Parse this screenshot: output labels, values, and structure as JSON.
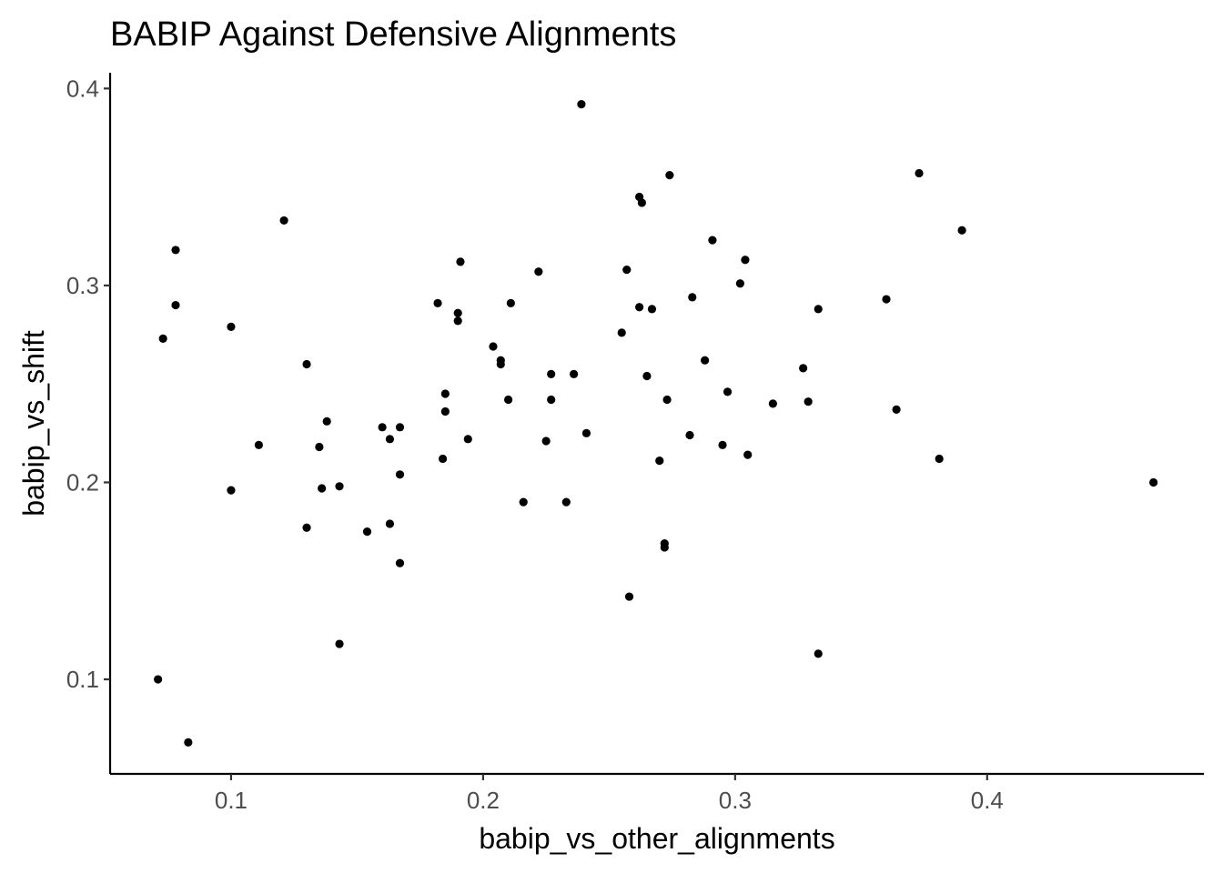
{
  "chart_data": {
    "type": "scatter",
    "title": "BABIP Against Defensive Alignments",
    "xlabel": "babip_vs_other_alignments",
    "ylabel": "babip_vs_shift",
    "xlim": [
      0.052,
      0.486
    ],
    "ylim": [
      0.052,
      0.408
    ],
    "x_ticks": [
      0.1,
      0.2,
      0.3,
      0.4
    ],
    "x_tick_labels": [
      "0.1",
      "0.2",
      "0.3",
      "0.4"
    ],
    "y_ticks": [
      0.1,
      0.2,
      0.3,
      0.4
    ],
    "y_tick_labels": [
      "0.1",
      "0.2",
      "0.3",
      "0.4"
    ],
    "grid": false,
    "legend": "none",
    "point_color": "#000000",
    "points": [
      {
        "x": 0.071,
        "y": 0.1
      },
      {
        "x": 0.073,
        "y": 0.273
      },
      {
        "x": 0.078,
        "y": 0.318
      },
      {
        "x": 0.078,
        "y": 0.29
      },
      {
        "x": 0.083,
        "y": 0.068
      },
      {
        "x": 0.1,
        "y": 0.279
      },
      {
        "x": 0.1,
        "y": 0.196
      },
      {
        "x": 0.111,
        "y": 0.219
      },
      {
        "x": 0.121,
        "y": 0.333
      },
      {
        "x": 0.13,
        "y": 0.26
      },
      {
        "x": 0.13,
        "y": 0.177
      },
      {
        "x": 0.135,
        "y": 0.218
      },
      {
        "x": 0.136,
        "y": 0.197
      },
      {
        "x": 0.138,
        "y": 0.231
      },
      {
        "x": 0.143,
        "y": 0.198
      },
      {
        "x": 0.143,
        "y": 0.118
      },
      {
        "x": 0.154,
        "y": 0.175
      },
      {
        "x": 0.16,
        "y": 0.228
      },
      {
        "x": 0.163,
        "y": 0.222
      },
      {
        "x": 0.163,
        "y": 0.179
      },
      {
        "x": 0.167,
        "y": 0.228
      },
      {
        "x": 0.167,
        "y": 0.204
      },
      {
        "x": 0.167,
        "y": 0.159
      },
      {
        "x": 0.182,
        "y": 0.291
      },
      {
        "x": 0.184,
        "y": 0.212
      },
      {
        "x": 0.185,
        "y": 0.245
      },
      {
        "x": 0.185,
        "y": 0.236
      },
      {
        "x": 0.19,
        "y": 0.286
      },
      {
        "x": 0.19,
        "y": 0.282
      },
      {
        "x": 0.191,
        "y": 0.312
      },
      {
        "x": 0.194,
        "y": 0.222
      },
      {
        "x": 0.204,
        "y": 0.269
      },
      {
        "x": 0.207,
        "y": 0.262
      },
      {
        "x": 0.207,
        "y": 0.26
      },
      {
        "x": 0.21,
        "y": 0.242
      },
      {
        "x": 0.211,
        "y": 0.291
      },
      {
        "x": 0.216,
        "y": 0.19
      },
      {
        "x": 0.222,
        "y": 0.307
      },
      {
        "x": 0.225,
        "y": 0.221
      },
      {
        "x": 0.227,
        "y": 0.255
      },
      {
        "x": 0.227,
        "y": 0.242
      },
      {
        "x": 0.233,
        "y": 0.19
      },
      {
        "x": 0.236,
        "y": 0.255
      },
      {
        "x": 0.239,
        "y": 0.392
      },
      {
        "x": 0.241,
        "y": 0.225
      },
      {
        "x": 0.255,
        "y": 0.276
      },
      {
        "x": 0.257,
        "y": 0.308
      },
      {
        "x": 0.258,
        "y": 0.142
      },
      {
        "x": 0.262,
        "y": 0.345
      },
      {
        "x": 0.263,
        "y": 0.342
      },
      {
        "x": 0.262,
        "y": 0.289
      },
      {
        "x": 0.265,
        "y": 0.254
      },
      {
        "x": 0.267,
        "y": 0.288
      },
      {
        "x": 0.27,
        "y": 0.211
      },
      {
        "x": 0.272,
        "y": 0.167
      },
      {
        "x": 0.272,
        "y": 0.169
      },
      {
        "x": 0.273,
        "y": 0.242
      },
      {
        "x": 0.274,
        "y": 0.356
      },
      {
        "x": 0.282,
        "y": 0.224
      },
      {
        "x": 0.283,
        "y": 0.294
      },
      {
        "x": 0.288,
        "y": 0.262
      },
      {
        "x": 0.291,
        "y": 0.323
      },
      {
        "x": 0.295,
        "y": 0.219
      },
      {
        "x": 0.297,
        "y": 0.246
      },
      {
        "x": 0.302,
        "y": 0.301
      },
      {
        "x": 0.304,
        "y": 0.313
      },
      {
        "x": 0.305,
        "y": 0.214
      },
      {
        "x": 0.315,
        "y": 0.24
      },
      {
        "x": 0.327,
        "y": 0.258
      },
      {
        "x": 0.329,
        "y": 0.241
      },
      {
        "x": 0.333,
        "y": 0.288
      },
      {
        "x": 0.333,
        "y": 0.113
      },
      {
        "x": 0.36,
        "y": 0.293
      },
      {
        "x": 0.364,
        "y": 0.237
      },
      {
        "x": 0.373,
        "y": 0.357
      },
      {
        "x": 0.381,
        "y": 0.212
      },
      {
        "x": 0.39,
        "y": 0.328
      },
      {
        "x": 0.466,
        "y": 0.2
      }
    ]
  }
}
